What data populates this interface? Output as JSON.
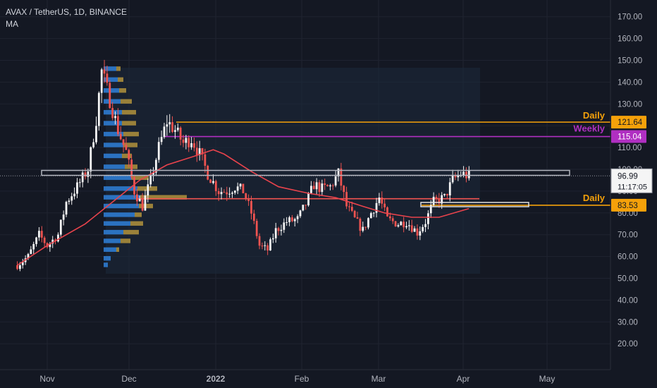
{
  "header": {
    "symbol_line": "AVAX / TetherUS, 1D, BINANCE",
    "indicator": "MA"
  },
  "colors": {
    "background": "#141823",
    "grid": "#1f2330",
    "up": "#f4f4f4",
    "down": "#ef5350",
    "ma": "#e8434c",
    "daily_line": "#f5a10a",
    "weekly_line": "#b02fc2",
    "zone_box": "#b2b5be",
    "vp_blue": "#2f80d9",
    "vp_yellow": "#c6a23d",
    "axis_text": "#b2b5be"
  },
  "price_axis": {
    "ticks": [
      "20.00",
      "30.00",
      "40.00",
      "50.00",
      "60.00",
      "70.00",
      "80.00",
      "90.00",
      "100.00",
      "110.00",
      "120.00",
      "130.00",
      "140.00",
      "150.00",
      "160.00",
      "170.00"
    ]
  },
  "time_axis": {
    "labels": [
      "Nov",
      "Dec",
      "2022",
      "Feb",
      "Mar",
      "Apr",
      "May"
    ]
  },
  "annotations": {
    "daily_upper": {
      "label": "Daily",
      "price_label": "121.64",
      "price": 121.64
    },
    "weekly": {
      "label": "Weekly",
      "price_label": "115.04",
      "price": 115.04
    },
    "daily_lower": {
      "label": "Daily",
      "price_label": "83.53",
      "price": 83.53
    },
    "current_price": {
      "label": "96.99",
      "countdown": "11:17:05",
      "price": 96.99
    }
  },
  "chart_data": {
    "type": "candlestick",
    "symbol": "AVAX / TetherUS",
    "timeframe": "1D",
    "exchange": "BINANCE",
    "ylim": [
      10,
      177
    ],
    "x_axis_labels": [
      "Nov",
      "Dec",
      "2022",
      "Feb",
      "Mar",
      "Apr",
      "May"
    ],
    "price_path": [
      [
        "Oct 20",
        56
      ],
      [
        "Oct 24",
        60
      ],
      [
        "Oct 28",
        70
      ],
      [
        "Nov 01",
        65
      ],
      [
        "Nov 05",
        70
      ],
      [
        "Nov 08",
        85
      ],
      [
        "Nov 12",
        92
      ],
      [
        "Nov 16",
        100
      ],
      [
        "Nov 19",
        123
      ],
      [
        "Nov 21",
        145
      ],
      [
        "Nov 24",
        132
      ],
      [
        "Nov 27",
        118
      ],
      [
        "Nov 30",
        108
      ],
      [
        "Dec 03",
        90
      ],
      [
        "Dec 06",
        83
      ],
      [
        "Dec 09",
        95
      ],
      [
        "Dec 12",
        110
      ],
      [
        "Dec 15",
        122
      ],
      [
        "Dec 18",
        118
      ],
      [
        "Dec 21",
        112
      ],
      [
        "Dec 24",
        114
      ],
      [
        "Dec 27",
        107
      ],
      [
        "Dec 30",
        98
      ],
      [
        "Jan 03",
        90
      ],
      [
        "Jan 06",
        90
      ],
      [
        "Jan 09",
        92
      ],
      [
        "Jan 12",
        90
      ],
      [
        "Jan 15",
        80
      ],
      [
        "Jan 18",
        65
      ],
      [
        "Jan 21",
        63
      ],
      [
        "Jan 24",
        72
      ],
      [
        "Jan 28",
        76
      ],
      [
        "Feb 01",
        77
      ],
      [
        "Feb 04",
        84
      ],
      [
        "Feb 07",
        93
      ],
      [
        "Feb 10",
        91
      ],
      [
        "Feb 13",
        92
      ],
      [
        "Feb 16",
        98
      ],
      [
        "Feb 19",
        83
      ],
      [
        "Feb 22",
        77
      ],
      [
        "Feb 25",
        72
      ],
      [
        "Feb 28",
        80
      ],
      [
        "Mar 03",
        87
      ],
      [
        "Mar 06",
        77
      ],
      [
        "Mar 10",
        75
      ],
      [
        "Mar 13",
        76
      ],
      [
        "Mar 17",
        71
      ],
      [
        "Mar 20",
        76
      ],
      [
        "Mar 23",
        85
      ],
      [
        "Mar 27",
        87
      ],
      [
        "Mar 30",
        95
      ],
      [
        "Apr 02",
        98
      ],
      [
        "Apr 05",
        97
      ]
    ],
    "moving_average": [
      [
        "Oct 20",
        56
      ],
      [
        "Nov 01",
        65
      ],
      [
        "Nov 15",
        75
      ],
      [
        "Nov 25",
        85
      ],
      [
        "Dec 05",
        95
      ],
      [
        "Dec 15",
        102
      ],
      [
        "Dec 25",
        106
      ],
      [
        "Jan 01",
        109
      ],
      [
        "Jan 05",
        107
      ],
      [
        "Jan 15",
        99
      ],
      [
        "Jan 25",
        92
      ],
      [
        "Feb 05",
        89
      ],
      [
        "Feb 15",
        87
      ],
      [
        "Feb 25",
        83
      ],
      [
        "Mar 05",
        80
      ],
      [
        "Mar 15",
        78
      ],
      [
        "Mar 25",
        78
      ],
      [
        "Apr 05",
        82
      ]
    ],
    "horizontal_levels": [
      {
        "label": "Daily",
        "price": 121.64
      },
      {
        "label": "Weekly",
        "price": 115.04
      },
      {
        "label": "Daily",
        "price": 83.53
      }
    ],
    "last_price": 96.99,
    "countdown": "11:17:05"
  }
}
